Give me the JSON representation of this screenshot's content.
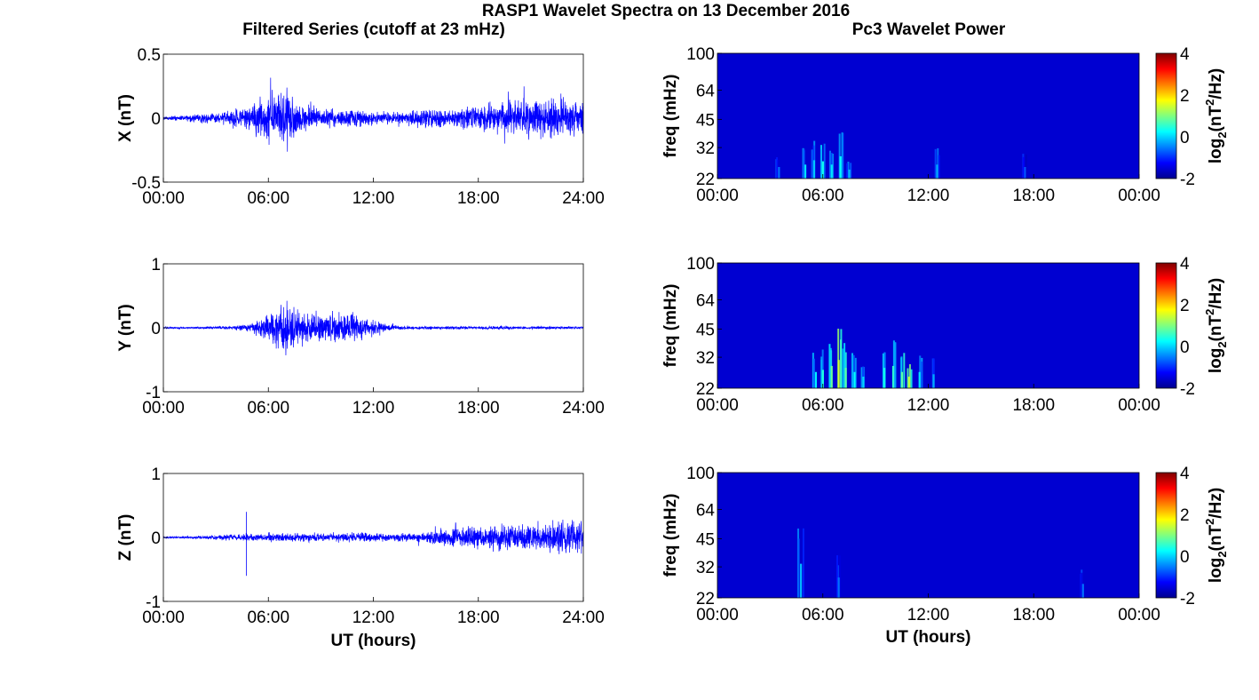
{
  "figure": {
    "title": "RASP1 Wavelet Spectra on 13 December 2016",
    "left_title": "Filtered Series (cutoff at 23 mHz)",
    "right_title": "Pc3 Wavelet Power"
  },
  "chart_data": [
    {
      "type": "line",
      "ylabel": "X (nT)",
      "xlabel": "",
      "xlim": [
        0,
        24
      ],
      "ylim": [
        -0.5,
        0.5
      ],
      "xticks": [
        "00:00",
        "06:00",
        "12:00",
        "18:00",
        "24:00"
      ],
      "yticks": [
        "-0.5",
        "0",
        "0.5"
      ],
      "x": [
        0,
        1,
        2,
        3,
        4,
        5,
        5.5,
        6,
        6.5,
        7,
        7.5,
        8,
        9,
        10,
        11,
        12,
        13,
        14,
        15,
        16,
        17,
        18,
        19,
        20,
        21,
        22,
        23,
        24
      ],
      "envelope": [
        0.02,
        0.03,
        0.05,
        0.06,
        0.08,
        0.15,
        0.2,
        0.28,
        0.3,
        0.32,
        0.25,
        0.14,
        0.09,
        0.09,
        0.1,
        0.07,
        0.06,
        0.07,
        0.11,
        0.09,
        0.09,
        0.13,
        0.16,
        0.18,
        0.2,
        0.2,
        0.21,
        0.18
      ],
      "series": [
        {
          "values_note": "",
          "color": "#0000ff"
        }
      ],
      "grid": false
    },
    {
      "type": "line",
      "ylabel": "Y (nT)",
      "xlabel": "",
      "xlim": [
        0,
        24
      ],
      "ylim": [
        -1,
        1
      ],
      "xticks": [
        "00:00",
        "06:00",
        "12:00",
        "18:00",
        "24:00"
      ],
      "yticks": [
        "-1",
        "0",
        "1"
      ],
      "x": [
        0,
        1,
        2,
        3,
        4,
        5,
        5.5,
        6,
        6.5,
        7,
        7.5,
        8,
        9,
        10,
        11,
        12,
        13,
        14,
        15,
        16,
        17,
        18,
        19,
        20,
        21,
        22,
        23,
        24
      ],
      "envelope": [
        0.02,
        0.02,
        0.02,
        0.03,
        0.04,
        0.08,
        0.2,
        0.3,
        0.45,
        0.55,
        0.4,
        0.3,
        0.3,
        0.32,
        0.3,
        0.15,
        0.06,
        0.03,
        0.03,
        0.03,
        0.03,
        0.03,
        0.04,
        0.03,
        0.03,
        0.03,
        0.03,
        0.03
      ],
      "series": [
        {
          "color": "#0000ff"
        }
      ],
      "grid": false
    },
    {
      "type": "line",
      "ylabel": "Z (nT)",
      "xlabel": "UT (hours)",
      "xlim": [
        0,
        24
      ],
      "ylim": [
        -1,
        1
      ],
      "xticks": [
        "00:00",
        "06:00",
        "12:00",
        "18:00",
        "24:00"
      ],
      "yticks": [
        "-1",
        "0",
        "1"
      ],
      "x": [
        0,
        1,
        2,
        3,
        4,
        5,
        5.5,
        6,
        6.5,
        7,
        7.5,
        8,
        9,
        10,
        11,
        12,
        13,
        14,
        15,
        16,
        17,
        18,
        19,
        20,
        21,
        22,
        23,
        24
      ],
      "envelope": [
        0.02,
        0.02,
        0.03,
        0.05,
        0.06,
        0.08,
        0.08,
        0.09,
        0.1,
        0.1,
        0.1,
        0.1,
        0.09,
        0.09,
        0.09,
        0.09,
        0.08,
        0.09,
        0.1,
        0.18,
        0.2,
        0.25,
        0.26,
        0.26,
        0.28,
        0.3,
        0.35,
        0.3
      ],
      "spikes": [
        {
          "x": 4.75,
          "y": [
            -0.6,
            0.4
          ]
        }
      ],
      "series": [
        {
          "color": "#0000ff"
        }
      ],
      "grid": false
    },
    {
      "type": "heatmap",
      "ylabel": "freq (mHz)",
      "xlabel": "",
      "xlim": [
        0,
        24
      ],
      "ylim": [
        22,
        100
      ],
      "xticks": [
        "00:00",
        "06:00",
        "12:00",
        "18:00",
        "00:00"
      ],
      "yticks": [
        "100",
        "64",
        "45",
        "32",
        "22"
      ],
      "ytick_values": [
        100,
        64,
        45,
        32,
        22
      ],
      "colorbar": {
        "label": "log2(nT2/Hz)",
        "label_base": "log",
        "label_sub": "2",
        "label_mid": "(nT",
        "label_sup": "2",
        "label_tail": "/Hz)",
        "ticks": [
          "4",
          "2",
          "0",
          "-2"
        ],
        "range": [
          -2,
          4
        ]
      },
      "background_value": -2,
      "blobs": [
        {
          "t": 3.5,
          "f0": 22,
          "f1": 30,
          "v": -1.4
        },
        {
          "t": 5.0,
          "f0": 22,
          "f1": 32,
          "v": -0.6
        },
        {
          "t": 5.5,
          "f0": 22,
          "f1": 36,
          "v": -0.8
        },
        {
          "t": 6.0,
          "f0": 22,
          "f1": 35,
          "v": -0.3
        },
        {
          "t": 6.5,
          "f0": 22,
          "f1": 32,
          "v": -0.6
        },
        {
          "t": 7.0,
          "f0": 22,
          "f1": 40,
          "v": -0.4
        },
        {
          "t": 7.5,
          "f0": 22,
          "f1": 28,
          "v": -0.9
        },
        {
          "t": 12.5,
          "f0": 22,
          "f1": 32,
          "v": -1.0
        },
        {
          "t": 17.5,
          "f0": 22,
          "f1": 30,
          "v": -1.6
        }
      ]
    },
    {
      "type": "heatmap",
      "ylabel": "freq (mHz)",
      "xlabel": "",
      "xlim": [
        0,
        24
      ],
      "ylim": [
        22,
        100
      ],
      "xticks": [
        "00:00",
        "06:00",
        "12:00",
        "18:00",
        "00:00"
      ],
      "yticks": [
        "100",
        "64",
        "45",
        "32",
        "22"
      ],
      "ytick_values": [
        100,
        64,
        45,
        32,
        22
      ],
      "colorbar": {
        "label": "log2(nT2/Hz)",
        "label_base": "log",
        "label_sub": "2",
        "label_mid": "(nT",
        "label_sup": "2",
        "label_tail": "/Hz)",
        "ticks": [
          "4",
          "2",
          "0",
          "-2"
        ],
        "range": [
          -2,
          4
        ]
      },
      "background_value": -2,
      "blobs": [
        {
          "t": 5.6,
          "f0": 22,
          "f1": 34,
          "v": -0.5
        },
        {
          "t": 6.0,
          "f0": 22,
          "f1": 36,
          "v": -0.2
        },
        {
          "t": 6.5,
          "f0": 22,
          "f1": 40,
          "v": 0.3
        },
        {
          "t": 6.9,
          "f0": 22,
          "f1": 47,
          "v": 1.0
        },
        {
          "t": 7.3,
          "f0": 22,
          "f1": 38,
          "v": 0.2
        },
        {
          "t": 7.8,
          "f0": 22,
          "f1": 34,
          "v": -0.4
        },
        {
          "t": 8.3,
          "f0": 22,
          "f1": 30,
          "v": -0.7
        },
        {
          "t": 9.5,
          "f0": 22,
          "f1": 38,
          "v": -0.3
        },
        {
          "t": 10.0,
          "f0": 22,
          "f1": 40,
          "v": -0.1
        },
        {
          "t": 10.5,
          "f0": 22,
          "f1": 34,
          "v": 0.2
        },
        {
          "t": 10.9,
          "f0": 22,
          "f1": 30,
          "v": 0.9
        },
        {
          "t": 11.5,
          "f0": 22,
          "f1": 34,
          "v": -0.6
        },
        {
          "t": 12.3,
          "f0": 22,
          "f1": 32,
          "v": -1.0
        }
      ]
    },
    {
      "type": "heatmap",
      "ylabel": "freq (mHz)",
      "xlabel": "UT (hours)",
      "xlim": [
        0,
        24
      ],
      "ylim": [
        22,
        100
      ],
      "xticks": [
        "00:00",
        "06:00",
        "12:00",
        "18:00",
        "00:00"
      ],
      "yticks": [
        "100",
        "64",
        "45",
        "32",
        "22"
      ],
      "ytick_values": [
        100,
        64,
        45,
        32,
        22
      ],
      "colorbar": {
        "label": "log2(nT2/Hz)",
        "label_base": "log",
        "label_sub": "2",
        "label_mid": "(nT",
        "label_sup": "2",
        "label_tail": "/Hz)",
        "ticks": [
          "4",
          "2",
          "0",
          "-2"
        ],
        "range": [
          -2,
          4
        ]
      },
      "background_value": -2,
      "blobs": [
        {
          "t": 4.75,
          "f0": 22,
          "f1": 55,
          "v": -0.9
        },
        {
          "t": 6.9,
          "f0": 22,
          "f1": 38,
          "v": -1.4
        },
        {
          "t": 20.8,
          "f0": 22,
          "f1": 32,
          "v": -1.4
        }
      ]
    }
  ]
}
